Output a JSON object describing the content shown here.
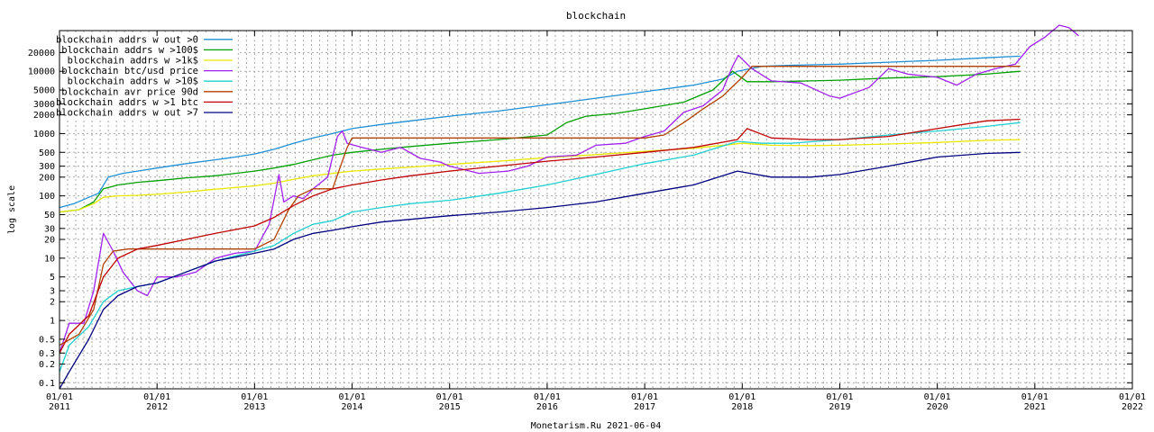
{
  "chart_data": {
    "type": "line",
    "title": "blockchain",
    "ylabel": "log scale",
    "xlabel": "",
    "footer": "Monetarism.Ru 2021-06-04",
    "yscale": "log",
    "ylim": [
      0.08,
      45000
    ],
    "xlim": [
      2011.0,
      2022.0
    ],
    "grid": true,
    "legend_position": "top-left",
    "y_ticks": [
      {
        "value": 0.1,
        "label": "0.1"
      },
      {
        "value": 0.2,
        "label": "0.2"
      },
      {
        "value": 0.3,
        "label": "0.3"
      },
      {
        "value": 0.5,
        "label": "0.5"
      },
      {
        "value": 1,
        "label": "1"
      },
      {
        "value": 2,
        "label": "2"
      },
      {
        "value": 3,
        "label": "3"
      },
      {
        "value": 5,
        "label": "5"
      },
      {
        "value": 10,
        "label": "10"
      },
      {
        "value": 20,
        "label": "20"
      },
      {
        "value": 30,
        "label": "30"
      },
      {
        "value": 50,
        "label": "50"
      },
      {
        "value": 100,
        "label": "100"
      },
      {
        "value": 200,
        "label": "200"
      },
      {
        "value": 300,
        "label": "300"
      },
      {
        "value": 500,
        "label": "500"
      },
      {
        "value": 1000,
        "label": "1000"
      },
      {
        "value": 2000,
        "label": "2000"
      },
      {
        "value": 3000,
        "label": "3000"
      },
      {
        "value": 5000,
        "label": "5000"
      },
      {
        "value": 10000,
        "label": "10000"
      },
      {
        "value": 20000,
        "label": "20000"
      }
    ],
    "x_ticks": [
      {
        "value": 2011,
        "label": "01/01",
        "year": "2011"
      },
      {
        "value": 2012,
        "label": "01/01",
        "year": "2012"
      },
      {
        "value": 2013,
        "label": "01/01",
        "year": "2013"
      },
      {
        "value": 2014,
        "label": "01/01",
        "year": "2014"
      },
      {
        "value": 2015,
        "label": "01/01",
        "year": "2015"
      },
      {
        "value": 2016,
        "label": "01/01",
        "year": "2016"
      },
      {
        "value": 2017,
        "label": "01/01",
        "year": "2017"
      },
      {
        "value": 2018,
        "label": "01/01",
        "year": "2018"
      },
      {
        "value": 2019,
        "label": "01/01",
        "year": "2019"
      },
      {
        "value": 2020,
        "label": "01/01",
        "year": "2020"
      },
      {
        "value": 2021,
        "label": "01/01",
        "year": "2021"
      },
      {
        "value": 2022,
        "label": "01/01",
        "year": "2022"
      }
    ],
    "series": [
      {
        "name": "blockchain addrs w out >0",
        "color": "#1e8fd6",
        "x": [
          2011.0,
          2011.15,
          2011.3,
          2011.4,
          2011.5,
          2011.65,
          2011.8,
          2012.0,
          2012.3,
          2012.6,
          2012.8,
          2013.0,
          2013.2,
          2013.4,
          2013.6,
          2013.8,
          2014.0,
          2014.3,
          2014.6,
          2015.0,
          2015.5,
          2016.0,
          2016.5,
          2017.0,
          2017.5,
          2017.8,
          2017.95,
          2018.2,
          2018.5,
          2019.0,
          2019.5,
          2020.0,
          2020.5,
          2020.85
        ],
        "y": [
          65,
          75,
          95,
          110,
          200,
          230,
          250,
          280,
          330,
          380,
          420,
          470,
          560,
          700,
          850,
          1000,
          1200,
          1400,
          1600,
          1900,
          2300,
          2900,
          3700,
          4700,
          6000,
          7500,
          10000,
          12000,
          12500,
          13000,
          14000,
          15000,
          16500,
          17500
        ]
      },
      {
        "name": "blockchain addrs w >100$",
        "color": "#00a000",
        "x": [
          2011.0,
          2011.2,
          2011.35,
          2011.45,
          2011.6,
          2011.8,
          2012.0,
          2012.3,
          2012.6,
          2013.0,
          2013.2,
          2013.4,
          2013.6,
          2013.8,
          2014.0,
          2014.3,
          2014.6,
          2015.0,
          2015.5,
          2016.0,
          2016.2,
          2016.4,
          2016.7,
          2017.0,
          2017.4,
          2017.7,
          2017.9,
          2018.05,
          2018.3,
          2018.7,
          2019.0,
          2019.5,
          2020.0,
          2020.5,
          2020.85
        ],
        "y": [
          55,
          60,
          80,
          130,
          150,
          165,
          175,
          195,
          210,
          250,
          280,
          320,
          380,
          450,
          500,
          560,
          620,
          700,
          800,
          950,
          1500,
          1900,
          2100,
          2500,
          3200,
          5000,
          10000,
          6800,
          6800,
          7000,
          7200,
          7800,
          8200,
          9000,
          10000
        ]
      },
      {
        "name": "blockchain addrs w >1k$",
        "color": "#e8e800",
        "x": [
          2011.0,
          2011.2,
          2011.35,
          2011.45,
          2011.6,
          2011.8,
          2012.0,
          2012.3,
          2012.6,
          2013.0,
          2013.2,
          2013.4,
          2013.6,
          2013.8,
          2014.0,
          2014.3,
          2014.6,
          2015.0,
          2015.5,
          2016.0,
          2016.5,
          2017.0,
          2017.5,
          2018.0,
          2018.3,
          2018.7,
          2019.0,
          2019.5,
          2020.0,
          2020.5,
          2020.85
        ],
        "y": [
          55,
          60,
          75,
          95,
          100,
          102,
          106,
          115,
          128,
          145,
          160,
          185,
          210,
          230,
          250,
          270,
          290,
          320,
          360,
          410,
          460,
          520,
          580,
          700,
          650,
          640,
          650,
          680,
          720,
          780,
          800
        ]
      },
      {
        "name": "blockchain btc/usd price",
        "color": "#a020f0",
        "x": [
          2011.0,
          2011.1,
          2011.25,
          2011.35,
          2011.45,
          2011.55,
          2011.65,
          2011.8,
          2011.9,
          2012.0,
          2012.2,
          2012.4,
          2012.6,
          2012.8,
          2013.0,
          2013.15,
          2013.25,
          2013.3,
          2013.4,
          2013.5,
          2013.6,
          2013.75,
          2013.85,
          2013.9,
          2013.95,
          2014.1,
          2014.3,
          2014.5,
          2014.7,
          2014.9,
          2015.0,
          2015.3,
          2015.6,
          2015.8,
          2016.0,
          2016.3,
          2016.5,
          2016.8,
          2017.0,
          2017.2,
          2017.4,
          2017.6,
          2017.8,
          2017.9,
          2017.96,
          2018.1,
          2018.3,
          2018.6,
          2018.9,
          2019.0,
          2019.3,
          2019.5,
          2019.7,
          2020.0,
          2020.2,
          2020.4,
          2020.6,
          2020.8,
          2020.95,
          2021.1,
          2021.25,
          2021.35,
          2021.45
        ],
        "y": [
          0.3,
          0.9,
          0.9,
          3,
          25,
          13,
          6,
          3,
          2.5,
          5,
          5,
          6,
          10,
          12,
          13,
          35,
          220,
          80,
          100,
          90,
          130,
          200,
          900,
          1100,
          700,
          600,
          500,
          600,
          400,
          350,
          300,
          230,
          250,
          300,
          420,
          450,
          650,
          700,
          900,
          1100,
          2200,
          2800,
          5000,
          12000,
          18000,
          11000,
          7000,
          6500,
          4000,
          3700,
          5500,
          11000,
          9000,
          8000,
          6000,
          9000,
          11000,
          13000,
          25000,
          35000,
          55000,
          50000,
          37000
        ]
      },
      {
        "name": "blockchain addrs w >10$",
        "color": "#20d0d0",
        "x": [
          2011.0,
          2011.1,
          2011.3,
          2011.45,
          2011.6,
          2011.8,
          2012.0,
          2012.3,
          2012.6,
          2013.0,
          2013.2,
          2013.4,
          2013.6,
          2013.8,
          2014.0,
          2014.3,
          2014.6,
          2015.0,
          2015.5,
          2016.0,
          2016.5,
          2017.0,
          2017.5,
          2017.95,
          2018.2,
          2018.5,
          2019.0,
          2019.5,
          2020.0,
          2020.5,
          2020.85
        ],
        "y": [
          0.15,
          0.4,
          0.8,
          2,
          3,
          3.5,
          4,
          6,
          9,
          13,
          16,
          25,
          35,
          40,
          55,
          65,
          75,
          85,
          110,
          150,
          220,
          330,
          450,
          750,
          700,
          700,
          800,
          950,
          1100,
          1300,
          1500
        ]
      },
      {
        "name": "blockchain avr price 90d",
        "color": "#b04000",
        "x": [
          2011.0,
          2011.2,
          2011.35,
          2011.45,
          2011.55,
          2011.7,
          2011.9,
          2012.3,
          2012.7,
          2013.0,
          2013.2,
          2013.35,
          2013.45,
          2013.6,
          2013.8,
          2013.95,
          2014.0,
          2014.2,
          2014.5,
          2015.0,
          2015.5,
          2016.0,
          2016.5,
          2017.0,
          2017.2,
          2017.4,
          2017.6,
          2017.8,
          2018.0,
          2018.1,
          2018.3,
          2019.0,
          2019.5,
          2020.0,
          2020.5,
          2020.85
        ],
        "y": [
          0.4,
          0.6,
          1.5,
          8,
          13,
          14,
          14,
          14,
          14,
          14,
          20,
          60,
          100,
          130,
          130,
          600,
          850,
          850,
          850,
          850,
          850,
          850,
          850,
          850,
          950,
          1500,
          2500,
          4000,
          8000,
          12000,
          12000,
          12000,
          12000,
          12000,
          12000,
          12000
        ]
      },
      {
        "name": "blockchain addrs w >1 btc",
        "color": "#c00000",
        "x": [
          2011.0,
          2011.1,
          2011.3,
          2011.45,
          2011.6,
          2011.8,
          2012.0,
          2012.3,
          2012.6,
          2013.0,
          2013.2,
          2013.4,
          2013.6,
          2013.8,
          2014.0,
          2014.3,
          2014.6,
          2015.0,
          2015.5,
          2016.0,
          2016.5,
          2017.0,
          2017.5,
          2017.95,
          2018.05,
          2018.3,
          2018.7,
          2019.0,
          2019.5,
          2020.0,
          2020.5,
          2020.85
        ],
        "y": [
          0.3,
          0.6,
          1.2,
          5,
          10,
          14,
          16,
          20,
          25,
          33,
          45,
          70,
          100,
          130,
          150,
          180,
          210,
          250,
          300,
          360,
          420,
          500,
          600,
          800,
          1200,
          850,
          800,
          800,
          900,
          1200,
          1600,
          1700
        ]
      },
      {
        "name": "blockchain addrs w out >7",
        "color": "#000080",
        "x": [
          2011.0,
          2011.1,
          2011.3,
          2011.45,
          2011.6,
          2011.8,
          2012.0,
          2012.3,
          2012.6,
          2013.0,
          2013.2,
          2013.4,
          2013.6,
          2013.8,
          2014.0,
          2014.3,
          2014.6,
          2015.0,
          2015.5,
          2016.0,
          2016.5,
          2017.0,
          2017.5,
          2017.95,
          2018.3,
          2018.7,
          2019.0,
          2019.5,
          2020.0,
          2020.5,
          2020.85
        ],
        "y": [
          0.08,
          0.15,
          0.5,
          1.5,
          2.5,
          3.5,
          4,
          6,
          9,
          12,
          14,
          20,
          25,
          28,
          32,
          38,
          42,
          48,
          55,
          65,
          80,
          110,
          150,
          250,
          200,
          200,
          220,
          300,
          420,
          480,
          500
        ]
      }
    ]
  }
}
